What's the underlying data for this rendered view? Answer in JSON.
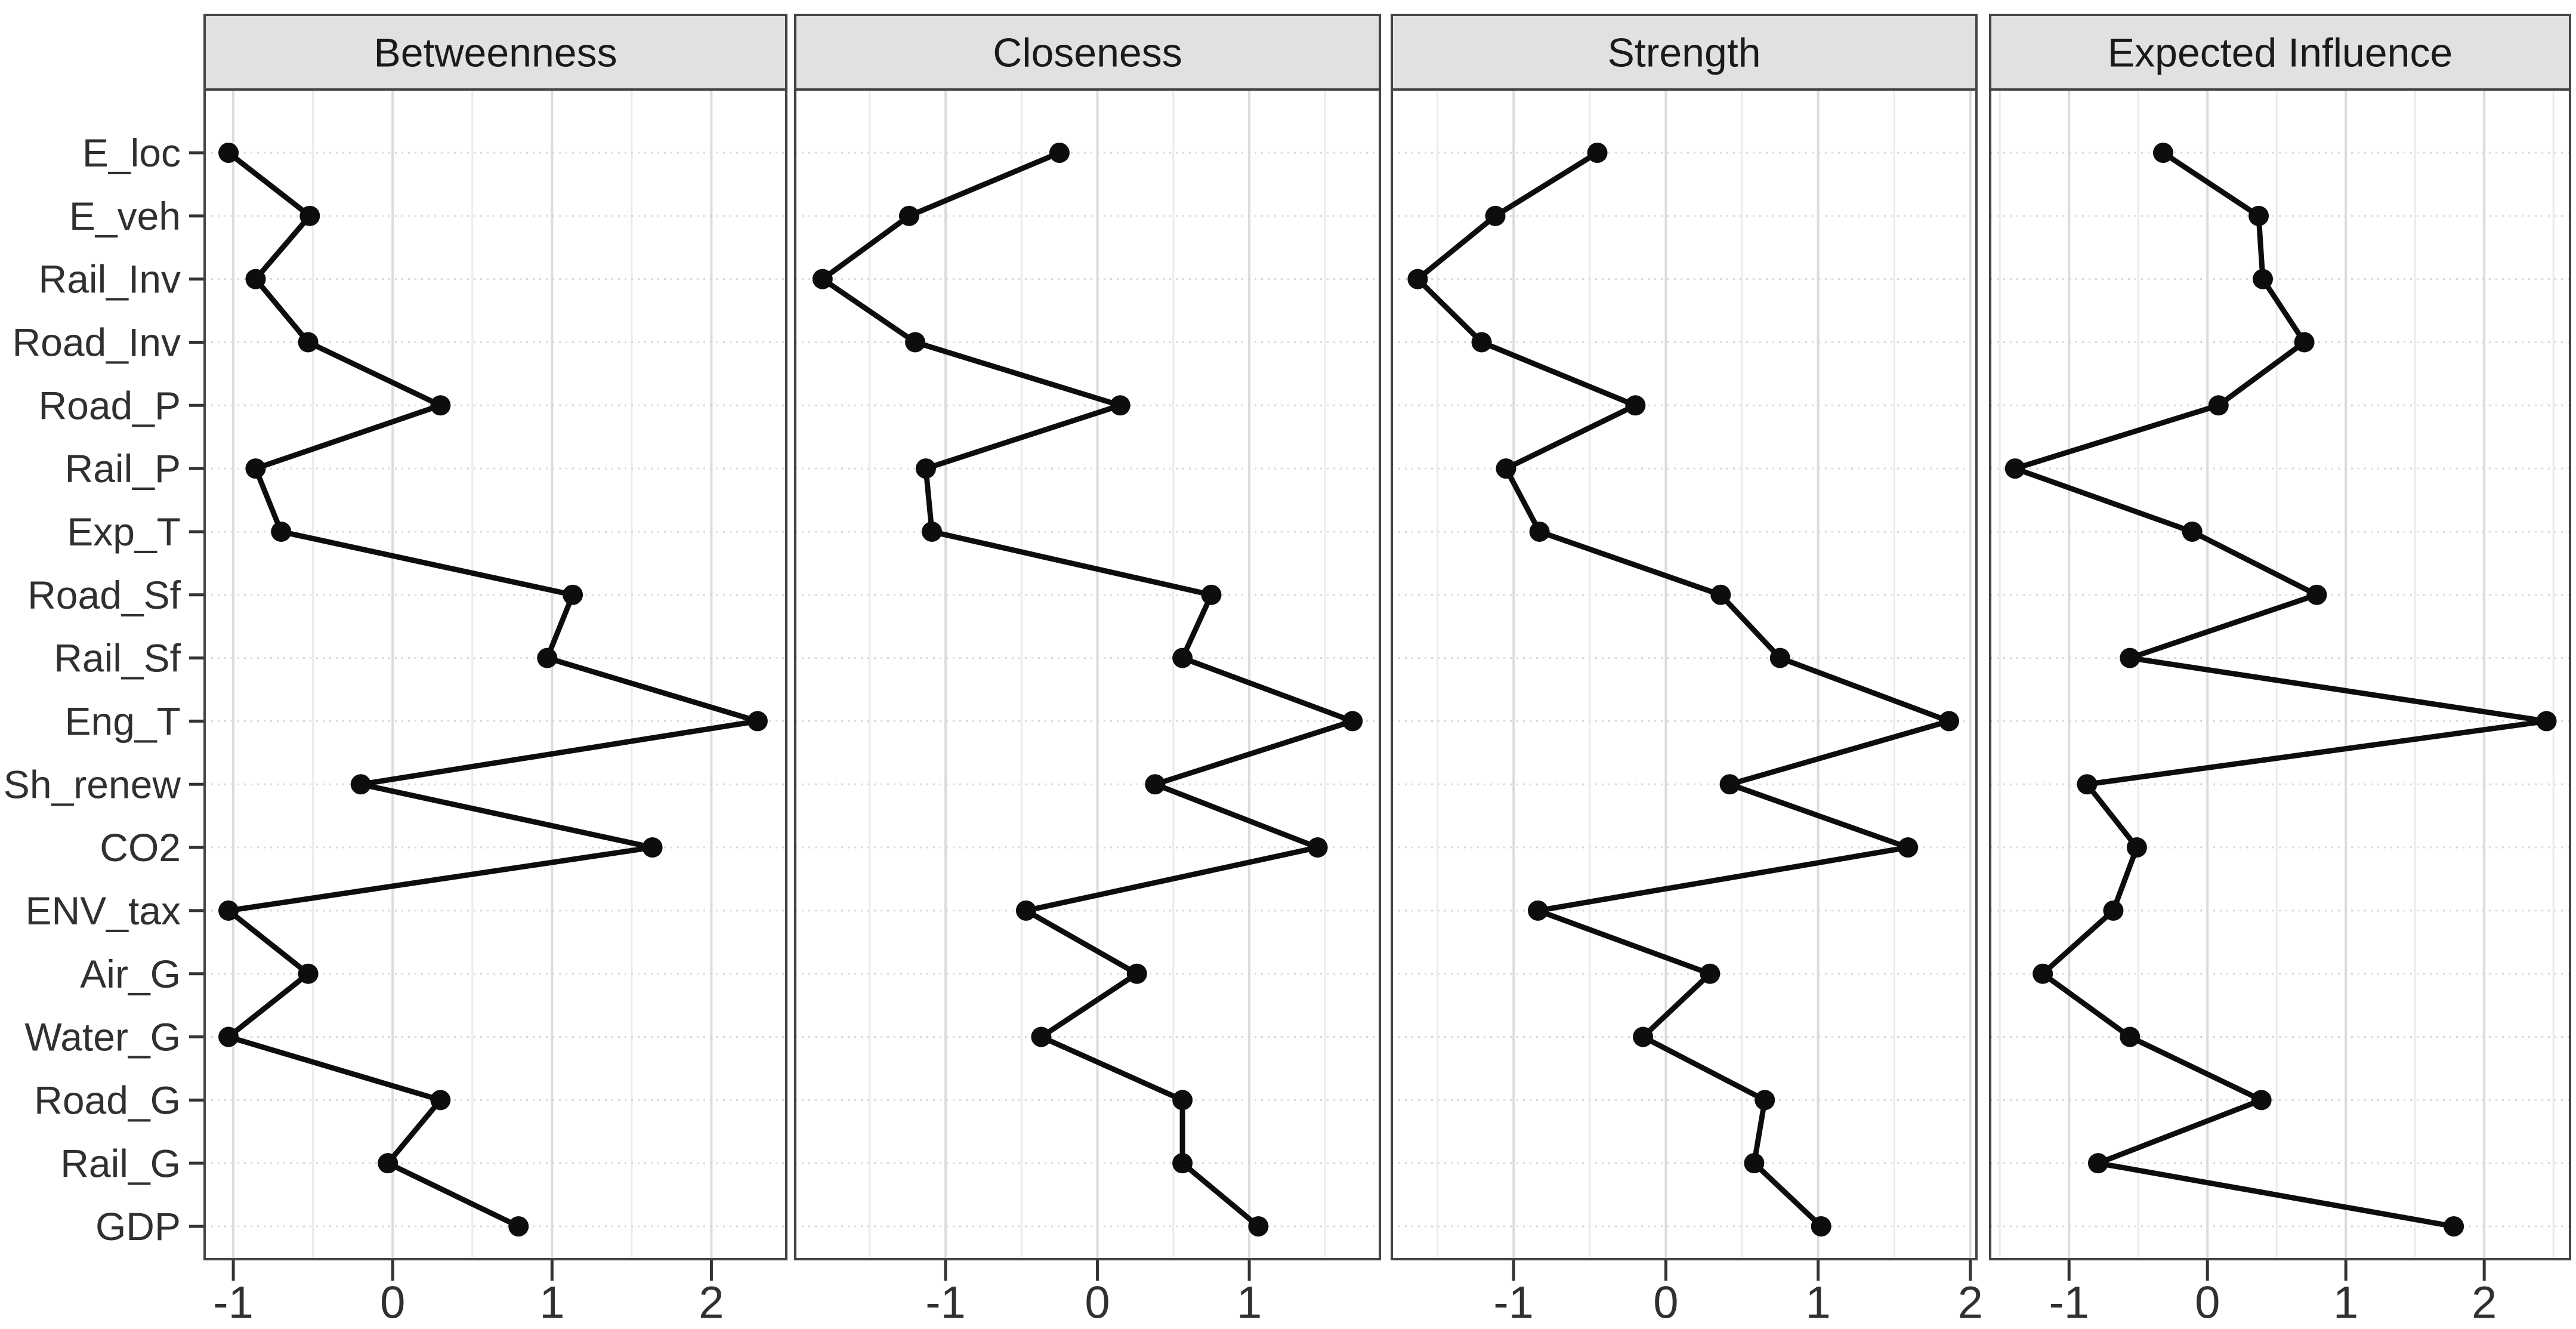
{
  "figure": {
    "kind": "faceted-centrality-plot",
    "facet_titles": [
      "Betweenness",
      "Closeness",
      "Strength",
      "Expected Influence"
    ]
  },
  "style": {
    "background": "#ffffff",
    "strip_fill": "#e1e1e1",
    "panel_border": "#454545",
    "grid_major": "#dcdcdc",
    "grid_minor": "#ebebeb",
    "grid_row": "#d8d8d8",
    "series_color": "#0d0d0d",
    "tick_color": "#333333",
    "text_color": "#303030",
    "strip_text_color": "#1a1a1a"
  },
  "chart_data": {
    "type": "line",
    "orientation": "horizontal",
    "title": "",
    "xlabel": "",
    "ylabel": "",
    "grid": true,
    "legend": false,
    "categories": [
      "E_loc",
      "E_veh",
      "Rail_Inv",
      "Road_Inv",
      "Road_P",
      "Rail_P",
      "Exp_T",
      "Road_Sf",
      "Rail_Sf",
      "Eng_T",
      "Sh_renew",
      "CO2",
      "ENV_tax",
      "Air_G",
      "Water_G",
      "Road_G",
      "Rail_G",
      "GDP"
    ],
    "panels": [
      {
        "title": "Betweenness",
        "xlim": [
          -1.18,
          2.47
        ],
        "xticks": [
          -1,
          0,
          1,
          2
        ],
        "values": [
          -1.03,
          -0.52,
          -0.86,
          -0.53,
          0.3,
          -0.86,
          -0.7,
          1.13,
          0.97,
          2.29,
          -0.2,
          1.63,
          -1.03,
          -0.53,
          -1.03,
          0.3,
          -0.03,
          0.79
        ]
      },
      {
        "title": "Closeness",
        "xlim": [
          -1.99,
          1.86
        ],
        "xticks": [
          -1,
          0,
          1
        ],
        "values": [
          -0.25,
          -1.24,
          -1.81,
          -1.2,
          0.15,
          -1.13,
          -1.09,
          0.75,
          0.56,
          1.68,
          0.38,
          1.45,
          -0.47,
          0.26,
          -0.37,
          0.56,
          0.56,
          1.06
        ]
      },
      {
        "title": "Strength",
        "xlim": [
          -1.8,
          2.04
        ],
        "xticks": [
          -1,
          0,
          1,
          2
        ],
        "values": [
          -0.45,
          -1.12,
          -1.63,
          -1.21,
          -0.2,
          -1.05,
          -0.83,
          0.36,
          0.75,
          1.86,
          0.42,
          1.59,
          -0.84,
          0.29,
          -0.15,
          0.65,
          0.58,
          1.02
        ]
      },
      {
        "title": "Expected Influence",
        "xlim": [
          -1.57,
          2.62
        ],
        "xticks": [
          -1,
          0,
          1,
          2
        ],
        "values": [
          -0.32,
          0.37,
          0.4,
          0.7,
          0.08,
          -1.39,
          -0.11,
          0.79,
          -0.56,
          2.45,
          -0.87,
          -0.51,
          -0.68,
          -1.19,
          -0.56,
          0.39,
          -0.79,
          1.78
        ]
      }
    ]
  }
}
